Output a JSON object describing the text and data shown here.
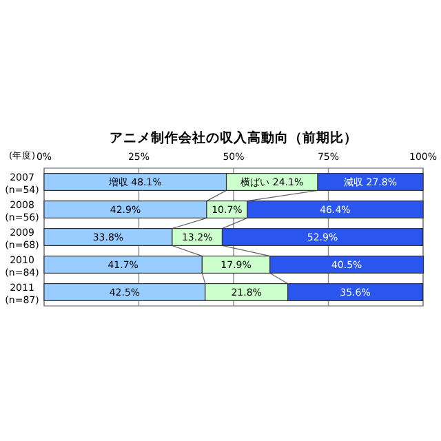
{
  "chart_data": {
    "type": "bar",
    "orientation": "horizontal",
    "stacked": true,
    "title": "アニメ制作会社の収入高動向（前期比）",
    "ylabel": "(年度)",
    "categories": [
      "2007 (n=54)",
      "2008 (n=56)",
      "2009 (n=68)",
      "2010 (n=84)",
      "2011 (n=87)"
    ],
    "series": [
      {
        "name": "増収",
        "color": "#99ccff",
        "values": [
          48.1,
          42.9,
          33.8,
          41.7,
          42.5
        ],
        "value_labels": [
          "48.1%",
          "42.9%",
          "33.8%",
          "41.7%",
          "42.5%"
        ]
      },
      {
        "name": "横ばい",
        "color": "#ccffcc",
        "values": [
          24.1,
          10.7,
          13.2,
          17.9,
          21.8
        ],
        "value_labels": [
          "24.1%",
          "10.7%",
          "13.2%",
          "17.9%",
          "21.8%"
        ]
      },
      {
        "name": "減収",
        "color": "#2a55ee",
        "values": [
          27.8,
          46.4,
          52.9,
          40.5,
          35.6
        ],
        "value_labels": [
          "27.8%",
          "46.4%",
          "52.9%",
          "40.5%",
          "35.6%"
        ]
      }
    ],
    "xlim": [
      0,
      100
    ],
    "xticks": [
      {
        "value": 0,
        "label": "0%"
      },
      {
        "value": 25,
        "label": "25%"
      },
      {
        "value": 50,
        "label": "50%"
      },
      {
        "value": 75,
        "label": "75%"
      },
      {
        "value": 100,
        "label": "100%"
      }
    ],
    "grid": "x"
  }
}
